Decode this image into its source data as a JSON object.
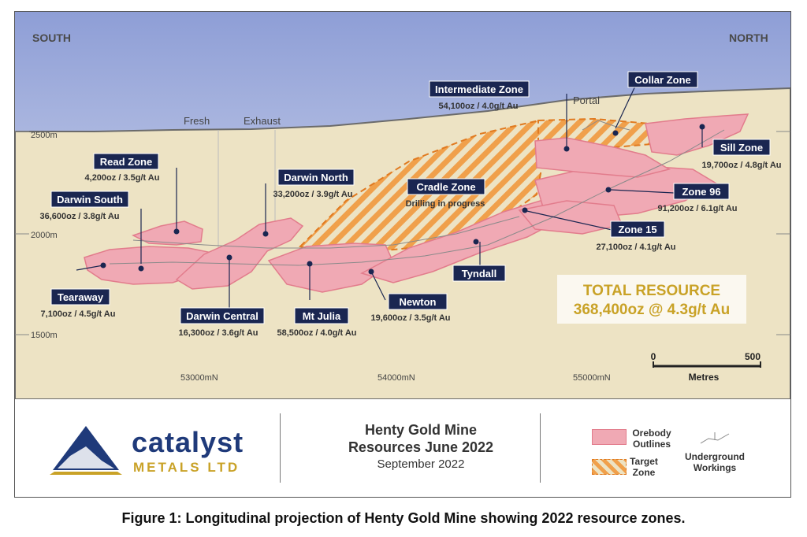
{
  "directions": {
    "south": "SOUTH",
    "north": "NORTH"
  },
  "surface_labels": {
    "fresh": "Fresh",
    "exhaust": "Exhaust",
    "portal": "Portal"
  },
  "elevations": [
    "2500m",
    "2000m",
    "1500m"
  ],
  "eastings": [
    "53000mN",
    "54000mN",
    "55000mN"
  ],
  "zones": [
    {
      "name": "Read Zone",
      "resource": "4,200oz / 3.5g/t Au"
    },
    {
      "name": "Darwin South",
      "resource": "36,600oz / 3.8g/t Au"
    },
    {
      "name": "Tearaway",
      "resource": "7,100oz / 4.5g/t Au"
    },
    {
      "name": "Darwin Central",
      "resource": "16,300oz / 3.6g/t Au"
    },
    {
      "name": "Darwin North",
      "resource": "33,200oz / 3.9g/t Au"
    },
    {
      "name": "Mt Julia",
      "resource": "58,500oz / 4.0g/t Au"
    },
    {
      "name": "Newton",
      "resource": "19,600oz / 3.5g/t Au"
    },
    {
      "name": "Tyndall",
      "resource": ""
    },
    {
      "name": "Intermediate Zone",
      "resource": "54,100oz / 4.0g/t Au"
    },
    {
      "name": "Collar Zone",
      "resource": ""
    },
    {
      "name": "Sill Zone",
      "resource": "19,700oz / 4.8g/t Au"
    },
    {
      "name": "Zone 96",
      "resource": "91,200oz / 6.1g/t Au"
    },
    {
      "name": "Zone 15",
      "resource": "27,100oz / 4.1g/t Au"
    }
  ],
  "cradle_zone": {
    "name": "Cradle Zone",
    "note": "Drilling in progress"
  },
  "total_resource": {
    "label": "TOTAL RESOURCE",
    "value": "368,400oz @ 4.3g/t Au"
  },
  "scale_bar": {
    "start": "0",
    "end": "500",
    "unit": "Metres"
  },
  "footer": {
    "logo_word1": "catalyst",
    "logo_word2": "METALS LTD",
    "title_line1": "Henty Gold Mine",
    "title_line2": "Resources June 2022",
    "date": "September 2022"
  },
  "legend": {
    "orebody": "Orebody Outlines",
    "target": "Target Zone",
    "workings": "Underground Workings"
  },
  "caption": "Figure 1:  Longitudinal projection of Henty Gold Mine showing 2022 resource zones.",
  "colors": {
    "sky_top": "#8e9ed6",
    "sky_bottom": "#e8ebf4",
    "ground": "#ede3c4",
    "orebody": "#f0a9b4",
    "orebody_edge": "#e27c8c",
    "target_stripe": "#f0a04b",
    "label_bg": "#1a2651",
    "gold": "#c9a227"
  }
}
